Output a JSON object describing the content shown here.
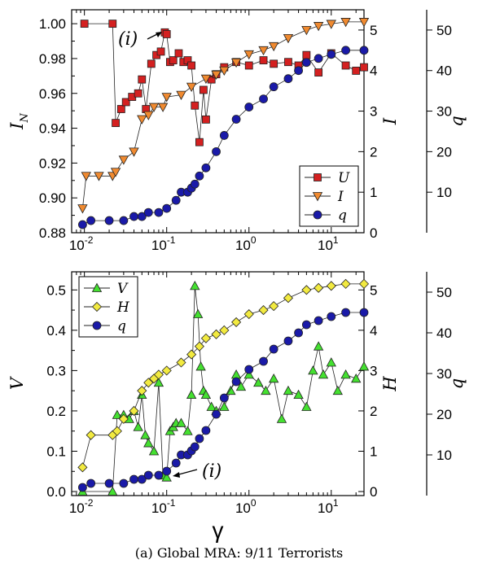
{
  "caption": "(a) Global MRA: 9/11 Terrorists",
  "chart_data": [
    {
      "type": "scatter",
      "panel": "top",
      "xscale": "log",
      "xlim": [
        0.007,
        25
      ],
      "x_ticks": [
        0.01,
        0.1,
        1,
        10
      ],
      "x_tick_labels": [
        "10",
        "10",
        "10",
        "10"
      ],
      "x_tick_exponents": [
        "-2",
        "-1",
        "0",
        "1"
      ],
      "ylabel": "I",
      "ylabel_sub": "N",
      "ylim": [
        0.88,
        1.008
      ],
      "y_ticks": [
        "0.88",
        "0.90",
        "0.92",
        "0.94",
        "0.96",
        "0.98",
        "1.00"
      ],
      "right_axes": [
        {
          "label": "I",
          "lim": [
            0,
            5.5
          ],
          "ticks": [
            "0",
            "1",
            "2",
            "3",
            "4",
            "5"
          ]
        },
        {
          "label": "q",
          "lim": [
            0,
            55
          ],
          "ticks": [
            "10",
            "20",
            "30",
            "40",
            "50"
          ]
        }
      ],
      "annotation": "(i)",
      "legend_position": "lower-right",
      "series": [
        {
          "name": "U",
          "axis": "left",
          "marker": "square",
          "color": "#d42020",
          "x": [
            0.01,
            0.022,
            0.024,
            0.028,
            0.032,
            0.038,
            0.045,
            0.05,
            0.056,
            0.065,
            0.075,
            0.085,
            0.095,
            0.1,
            0.11,
            0.12,
            0.14,
            0.16,
            0.18,
            0.2,
            0.22,
            0.25,
            0.28,
            0.3,
            0.35,
            0.4,
            0.5,
            0.7,
            1.0,
            1.5,
            2.0,
            3.0,
            4.0,
            5.0,
            7.0,
            10.0,
            15.0,
            20.0,
            25.0
          ],
          "y": [
            1.0,
            1.0,
            0.943,
            0.951,
            0.955,
            0.958,
            0.96,
            0.968,
            0.951,
            0.977,
            0.982,
            0.984,
            0.995,
            0.994,
            0.978,
            0.979,
            0.983,
            0.978,
            0.979,
            0.976,
            0.953,
            0.932,
            0.962,
            0.945,
            0.968,
            0.971,
            0.975,
            0.978,
            0.976,
            0.979,
            0.977,
            0.978,
            0.976,
            0.982,
            0.972,
            0.983,
            0.976,
            0.973,
            0.975
          ]
        },
        {
          "name": "I",
          "axis": "right1",
          "marker": "triangle-down",
          "color": "#f08a30",
          "x": [
            0.0095,
            0.0105,
            0.015,
            0.022,
            0.024,
            0.03,
            0.04,
            0.05,
            0.06,
            0.07,
            0.09,
            0.1,
            0.15,
            0.2,
            0.3,
            0.4,
            0.5,
            0.7,
            1.0,
            1.5,
            2.0,
            3.0,
            5.0,
            7.0,
            10.0,
            15.0,
            25.0
          ],
          "y": [
            0.6,
            1.4,
            1.4,
            1.4,
            1.5,
            1.8,
            2.0,
            2.8,
            2.9,
            3.1,
            3.1,
            3.35,
            3.4,
            3.6,
            3.8,
            3.9,
            4.0,
            4.2,
            4.4,
            4.5,
            4.6,
            4.8,
            5.0,
            5.1,
            5.15,
            5.2,
            5.2
          ]
        },
        {
          "name": "q",
          "axis": "right2",
          "marker": "circle",
          "color": "#1a1aa8",
          "x": [
            0.0095,
            0.012,
            0.02,
            0.03,
            0.04,
            0.05,
            0.06,
            0.08,
            0.1,
            0.13,
            0.15,
            0.18,
            0.2,
            0.22,
            0.25,
            0.3,
            0.4,
            0.5,
            0.7,
            1.0,
            1.5,
            2.0,
            3.0,
            4.0,
            5.0,
            7.0,
            10.0,
            15.0,
            25.0
          ],
          "y": [
            2,
            3,
            3,
            3,
            4,
            4,
            5,
            5,
            6,
            8,
            10,
            10,
            11,
            12,
            14,
            16,
            20,
            24,
            28,
            31,
            33,
            36,
            38,
            40,
            42,
            43,
            44,
            45,
            45
          ]
        }
      ]
    },
    {
      "type": "scatter",
      "panel": "bottom",
      "xscale": "log",
      "xlim": [
        0.007,
        25
      ],
      "x_ticks": [
        0.01,
        0.1,
        1,
        10
      ],
      "x_tick_labels": [
        "10",
        "10",
        "10",
        "10"
      ],
      "x_tick_exponents": [
        "-2",
        "-1",
        "0",
        "1"
      ],
      "xlabel": "γ",
      "ylabel": "V",
      "ylim": [
        -0.01,
        0.545
      ],
      "y_ticks": [
        "0.0",
        "0.1",
        "0.2",
        "0.3",
        "0.4",
        "0.5"
      ],
      "right_axes": [
        {
          "label": "H",
          "lim": [
            -0.1,
            5.45
          ],
          "ticks": [
            "0",
            "1",
            "2",
            "3",
            "4",
            "5"
          ]
        },
        {
          "label": "q",
          "lim": [
            0,
            55
          ],
          "ticks": [
            "10",
            "20",
            "30",
            "40",
            "50"
          ]
        }
      ],
      "annotation": "(i)",
      "legend_position": "top-left",
      "series": [
        {
          "name": "V",
          "axis": "left",
          "marker": "triangle-up",
          "color": "#44e030",
          "x": [
            0.0095,
            0.022,
            0.025,
            0.03,
            0.035,
            0.04,
            0.045,
            0.05,
            0.055,
            0.06,
            0.07,
            0.08,
            0.09,
            0.1,
            0.11,
            0.12,
            0.13,
            0.15,
            0.18,
            0.2,
            0.22,
            0.24,
            0.26,
            0.28,
            0.3,
            0.35,
            0.4,
            0.5,
            0.6,
            0.7,
            0.8,
            1.0,
            1.3,
            1.6,
            2.0,
            2.5,
            3.0,
            4.0,
            5.0,
            6.0,
            7.0,
            8.0,
            10.0,
            12.0,
            15.0,
            20.0,
            25.0
          ],
          "y": [
            0.0,
            0.0,
            0.19,
            0.19,
            0.18,
            0.2,
            0.16,
            0.24,
            0.14,
            0.12,
            0.1,
            0.27,
            0.04,
            0.035,
            0.15,
            0.16,
            0.17,
            0.17,
            0.15,
            0.24,
            0.51,
            0.44,
            0.31,
            0.25,
            0.24,
            0.21,
            0.2,
            0.21,
            0.25,
            0.29,
            0.26,
            0.29,
            0.27,
            0.25,
            0.28,
            0.18,
            0.25,
            0.24,
            0.21,
            0.3,
            0.36,
            0.29,
            0.32,
            0.25,
            0.29,
            0.28,
            0.31
          ]
        },
        {
          "name": "H",
          "axis": "right1",
          "marker": "diamond",
          "color": "#f2ea40",
          "x": [
            0.0095,
            0.012,
            0.022,
            0.025,
            0.03,
            0.04,
            0.05,
            0.06,
            0.07,
            0.08,
            0.1,
            0.15,
            0.2,
            0.25,
            0.3,
            0.4,
            0.5,
            0.7,
            1.0,
            1.5,
            2.0,
            3.0,
            5.0,
            7.0,
            10.0,
            15.0,
            25.0
          ],
          "y": [
            0.6,
            1.4,
            1.4,
            1.5,
            1.8,
            2.0,
            2.5,
            2.7,
            2.8,
            2.9,
            3.0,
            3.2,
            3.4,
            3.6,
            3.8,
            3.9,
            4.0,
            4.2,
            4.4,
            4.5,
            4.6,
            4.8,
            5.0,
            5.05,
            5.1,
            5.15,
            5.15
          ]
        },
        {
          "name": "q",
          "axis": "right2",
          "marker": "circle",
          "color": "#1a1aa8",
          "x": [
            0.0095,
            0.012,
            0.02,
            0.03,
            0.04,
            0.05,
            0.06,
            0.08,
            0.1,
            0.13,
            0.15,
            0.18,
            0.2,
            0.22,
            0.25,
            0.3,
            0.4,
            0.5,
            0.7,
            1.0,
            1.5,
            2.0,
            3.0,
            4.0,
            5.0,
            7.0,
            10.0,
            15.0,
            25.0
          ],
          "y": [
            2,
            3,
            3,
            3,
            4,
            4,
            5,
            5,
            6,
            8,
            10,
            10,
            11,
            12,
            14,
            16,
            20,
            24,
            28,
            31,
            33,
            36,
            38,
            40,
            42,
            43,
            44,
            45,
            45
          ]
        }
      ]
    }
  ]
}
